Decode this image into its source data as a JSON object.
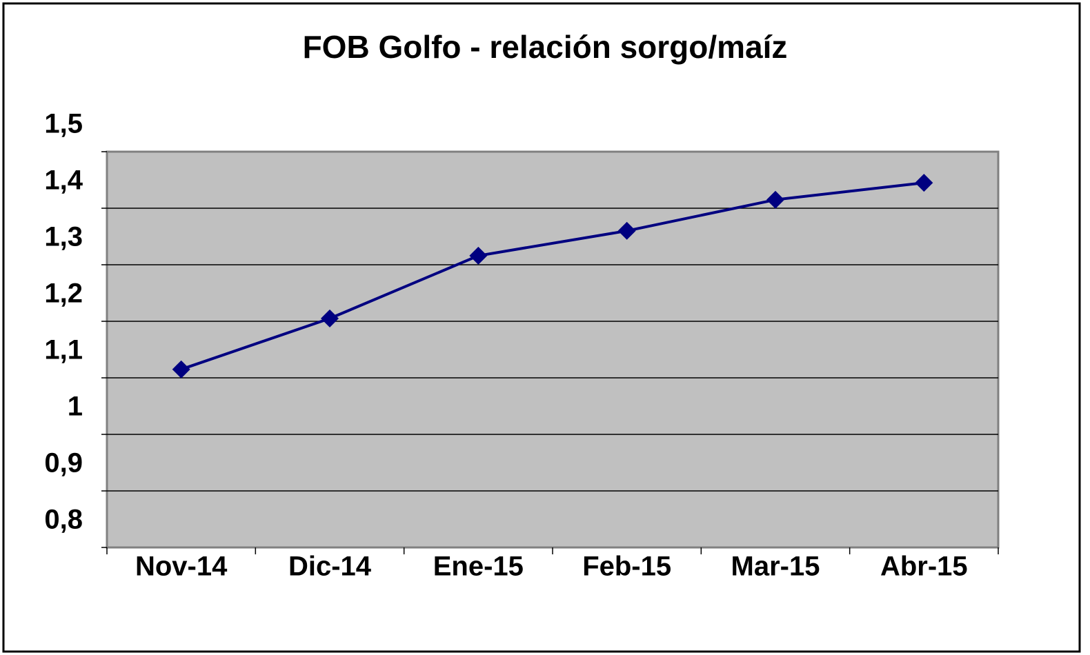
{
  "chart_data": {
    "type": "line",
    "title": "FOB Golfo - relación sorgo/maíz",
    "categories": [
      "Nov-14",
      "Dic-14",
      "Ene-15",
      "Feb-15",
      "Mar-15",
      "Abr-15"
    ],
    "series": [
      {
        "color": "#000080",
        "values": [
          1.115,
          1.205,
          1.316,
          1.36,
          1.415,
          1.445
        ]
      }
    ],
    "ylim": [
      0.8,
      1.5
    ],
    "yticks": [
      {
        "value": 0.8,
        "label": "0,8"
      },
      {
        "value": 0.9,
        "label": "0,9"
      },
      1,
      {
        "value": 1.1,
        "label": "1,1"
      },
      {
        "value": 1.2,
        "label": "1,2"
      },
      {
        "value": 1.3,
        "label": "1,3"
      },
      {
        "value": 1.4,
        "label": "1,4"
      },
      {
        "value": 1.5,
        "label": "1,5"
      }
    ],
    "grid": true
  }
}
